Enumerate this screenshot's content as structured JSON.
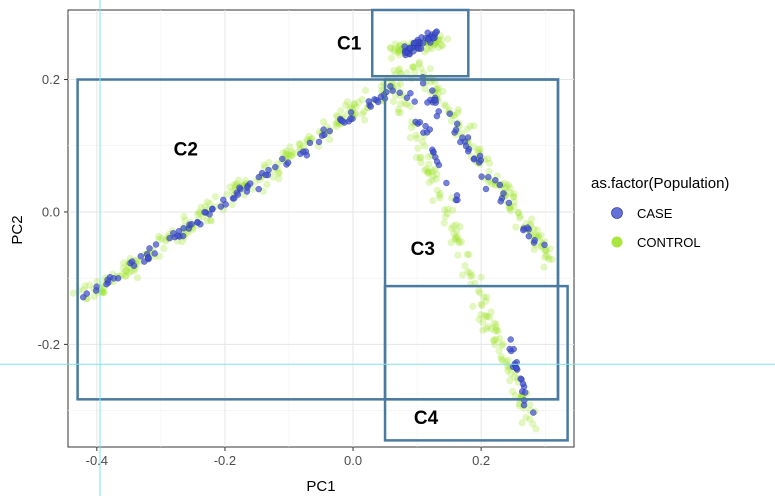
{
  "colors": {
    "case": "#3f4fd0",
    "control": "#9be21f",
    "box": "#4a7aa0",
    "crosshair": "#7fe3ee",
    "panel_grid": "#e6e6e6"
  },
  "chart_data": {
    "type": "scatter",
    "title": "",
    "xlabel": "PC1",
    "ylabel": "PC2",
    "xlim": [
      -0.445,
      0.345
    ],
    "ylim": [
      -0.355,
      0.305
    ],
    "x_ticks": [
      -0.4,
      -0.2,
      0.0,
      0.2
    ],
    "x_tick_labels": [
      "-0.4",
      "-0.2",
      "0.0",
      "0.2"
    ],
    "y_ticks": [
      -0.2,
      0.0,
      0.2
    ],
    "y_tick_labels": [
      "-0.2",
      "0.0",
      "0.2"
    ],
    "grid": true,
    "legend": {
      "title": "as.factor(Population)",
      "placement": "right",
      "entries": [
        {
          "name": "CASE",
          "color": "#3f4fd0"
        },
        {
          "name": "CONTROL",
          "color": "#9be21f"
        }
      ]
    },
    "series": [
      {
        "name": "CONTROL",
        "color": "#9be21f",
        "arms": [
          {
            "from": [
              -0.42,
              -0.13
            ],
            "to": [
              0.09,
              0.21
            ],
            "n": 240,
            "spread": 0.016
          },
          {
            "from": [
              0.1,
              0.22
            ],
            "to": [
              0.31,
              -0.075
            ],
            "n": 140,
            "spread": 0.014
          },
          {
            "from": [
              0.07,
              0.18
            ],
            "to": [
              0.28,
              -0.32
            ],
            "n": 150,
            "spread": 0.013
          },
          {
            "from": [
              0.06,
              0.24
            ],
            "to": [
              0.14,
              0.26
            ],
            "n": 60,
            "spread": 0.012
          }
        ]
      },
      {
        "name": "CASE",
        "color": "#3f4fd0",
        "arms": [
          {
            "from": [
              -0.42,
              -0.13
            ],
            "to": [
              0.07,
              0.19
            ],
            "n": 95,
            "spread": 0.008
          },
          {
            "from": [
              0.1,
              0.21
            ],
            "to": [
              0.3,
              -0.07
            ],
            "n": 45,
            "spread": 0.01
          },
          {
            "from": [
              0.09,
              0.17
            ],
            "to": [
              0.16,
              0.02
            ],
            "n": 20,
            "spread": 0.01
          },
          {
            "from": [
              0.24,
              -0.18
            ],
            "to": [
              0.28,
              -0.31
            ],
            "n": 20,
            "spread": 0.006
          },
          {
            "from": [
              0.08,
              0.24
            ],
            "to": [
              0.13,
              0.27
            ],
            "n": 45,
            "spread": 0.008
          }
        ]
      }
    ],
    "annotations": {
      "clusters": [
        {
          "label": "C1",
          "x0": 0.03,
          "x1": 0.18,
          "y0": 0.205,
          "y1": 0.305,
          "label_x": -0.025,
          "label_y": 0.245
        },
        {
          "label": "C2",
          "x0": -0.43,
          "x1": 0.32,
          "y0": -0.283,
          "y1": 0.2,
          "label_x": -0.28,
          "label_y": 0.085
        },
        {
          "label": "C3",
          "x0": 0.05,
          "x1": 0.32,
          "y0": -0.283,
          "y1": 0.2,
          "label_x": 0.09,
          "label_y": -0.065
        },
        {
          "label": "C4",
          "x0": 0.05,
          "x1": 0.335,
          "y0": -0.345,
          "y1": -0.112,
          "label_x": 0.095,
          "label_y": -0.32
        }
      ],
      "crosshair": {
        "x": -0.395,
        "y": -0.23
      }
    }
  }
}
